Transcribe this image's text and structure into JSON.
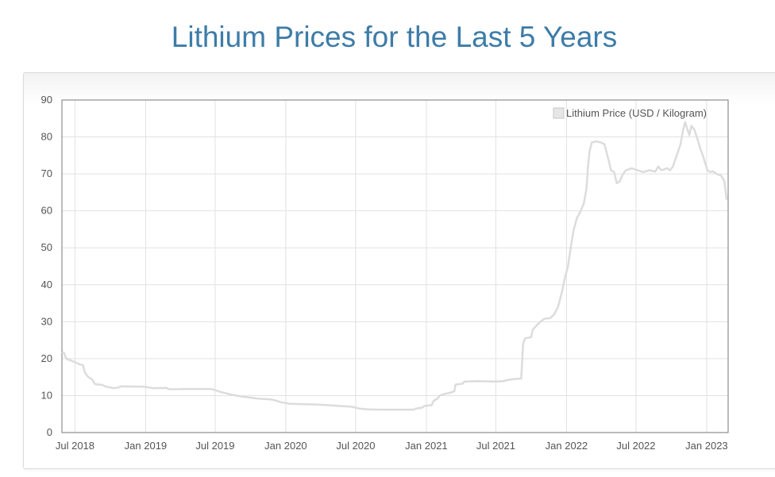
{
  "title": "Lithium Prices for the Last 5 Years",
  "chart_data": {
    "type": "line",
    "title": "Lithium Prices for the Last 5 Years",
    "xlabel": "",
    "ylabel": "",
    "ylim": [
      0,
      90
    ],
    "yticks": [
      0,
      10,
      20,
      30,
      40,
      50,
      60,
      70,
      80,
      90
    ],
    "xlim": [
      "2018-05-28",
      "2023-02-26"
    ],
    "xticks": [
      {
        "date": "2018-07-01",
        "label": "Jul 2018"
      },
      {
        "date": "2019-01-01",
        "label": "Jan 2019"
      },
      {
        "date": "2019-07-01",
        "label": "Jul 2019"
      },
      {
        "date": "2020-01-01",
        "label": "Jan 2020"
      },
      {
        "date": "2020-07-01",
        "label": "Jul 2020"
      },
      {
        "date": "2021-01-01",
        "label": "Jan 2021"
      },
      {
        "date": "2021-07-01",
        "label": "Jul 2021"
      },
      {
        "date": "2022-01-01",
        "label": "Jan 2022"
      },
      {
        "date": "2022-07-01",
        "label": "Jul 2022"
      },
      {
        "date": "2023-01-01",
        "label": "Jan 2023"
      }
    ],
    "grid": true,
    "legend_position": "top-right",
    "series": [
      {
        "name": "Lithium Price (USD / Kilogram)",
        "color": "#dcdcdc",
        "points": [
          [
            "2018-05-28",
            21.8
          ],
          [
            "2018-06-03",
            21.5
          ],
          [
            "2018-06-06",
            20.5
          ],
          [
            "2018-06-10",
            19.9
          ],
          [
            "2018-06-20",
            19.5
          ],
          [
            "2018-07-02",
            19.0
          ],
          [
            "2018-07-10",
            18.6
          ],
          [
            "2018-07-22",
            18.2
          ],
          [
            "2018-07-27",
            16.2
          ],
          [
            "2018-08-03",
            15.2
          ],
          [
            "2018-08-15",
            14.3
          ],
          [
            "2018-08-22",
            13.1
          ],
          [
            "2018-09-10",
            12.9
          ],
          [
            "2018-09-17",
            12.5
          ],
          [
            "2018-10-01",
            12.2
          ],
          [
            "2018-10-10",
            12.0
          ],
          [
            "2018-10-22",
            12.2
          ],
          [
            "2018-10-29",
            12.5
          ],
          [
            "2018-12-28",
            12.4
          ],
          [
            "2019-01-10",
            12.2
          ],
          [
            "2019-01-20",
            12.0
          ],
          [
            "2019-02-25",
            12.1
          ],
          [
            "2019-03-01",
            11.8
          ],
          [
            "2019-03-08",
            11.7
          ],
          [
            "2019-04-10",
            11.8
          ],
          [
            "2019-06-20",
            11.8
          ],
          [
            "2019-07-01",
            11.5
          ],
          [
            "2019-07-15",
            11.0
          ],
          [
            "2019-08-15",
            10.2
          ],
          [
            "2019-09-05",
            9.8
          ],
          [
            "2019-10-05",
            9.4
          ],
          [
            "2019-10-20",
            9.2
          ],
          [
            "2019-11-20",
            9.0
          ],
          [
            "2019-12-01",
            8.8
          ],
          [
            "2019-12-20",
            8.2
          ],
          [
            "2020-01-10",
            7.8
          ],
          [
            "2020-02-15",
            7.7
          ],
          [
            "2020-03-20",
            7.6
          ],
          [
            "2020-04-20",
            7.4
          ],
          [
            "2020-05-20",
            7.2
          ],
          [
            "2020-06-20",
            7.0
          ],
          [
            "2020-07-10",
            6.5
          ],
          [
            "2020-08-01",
            6.3
          ],
          [
            "2020-09-01",
            6.2
          ],
          [
            "2020-10-20",
            6.2
          ],
          [
            "2020-11-30",
            6.2
          ],
          [
            "2020-12-05",
            6.5
          ],
          [
            "2020-12-20",
            6.7
          ],
          [
            "2020-12-27",
            7.2
          ],
          [
            "2021-01-15",
            7.4
          ],
          [
            "2021-01-20",
            8.6
          ],
          [
            "2021-01-30",
            9.2
          ],
          [
            "2021-02-05",
            10.0
          ],
          [
            "2021-02-20",
            10.5
          ],
          [
            "2021-03-05",
            10.8
          ],
          [
            "2021-03-15",
            11.2
          ],
          [
            "2021-03-18",
            13.0
          ],
          [
            "2021-04-05",
            13.2
          ],
          [
            "2021-04-10",
            13.8
          ],
          [
            "2021-05-15",
            13.9
          ],
          [
            "2021-06-30",
            13.8
          ],
          [
            "2021-07-20",
            13.9
          ],
          [
            "2021-08-05",
            14.3
          ],
          [
            "2021-08-20",
            14.5
          ],
          [
            "2021-09-05",
            14.6
          ],
          [
            "2021-09-10",
            24.0
          ],
          [
            "2021-09-15",
            25.5
          ],
          [
            "2021-10-01",
            25.8
          ],
          [
            "2021-10-05",
            27.8
          ],
          [
            "2021-10-15",
            29.0
          ],
          [
            "2021-10-25",
            30.0
          ],
          [
            "2021-11-05",
            30.8
          ],
          [
            "2021-11-20",
            31.0
          ],
          [
            "2021-11-30",
            32.0
          ],
          [
            "2021-12-10",
            34.0
          ],
          [
            "2021-12-20",
            38.0
          ],
          [
            "2021-12-28",
            42.0
          ],
          [
            "2022-01-05",
            45.0
          ],
          [
            "2022-01-12",
            50.0
          ],
          [
            "2022-01-20",
            55.0
          ],
          [
            "2022-01-28",
            58.0
          ],
          [
            "2022-02-05",
            59.5
          ],
          [
            "2022-02-15",
            62.0
          ],
          [
            "2022-02-22",
            66.0
          ],
          [
            "2022-02-26",
            72.0
          ],
          [
            "2022-03-02",
            76.0
          ],
          [
            "2022-03-08",
            78.5
          ],
          [
            "2022-03-20",
            78.8
          ],
          [
            "2022-04-01",
            78.5
          ],
          [
            "2022-04-10",
            78.0
          ],
          [
            "2022-04-20",
            74.0
          ],
          [
            "2022-04-27",
            71.0
          ],
          [
            "2022-05-05",
            70.5
          ],
          [
            "2022-05-12",
            67.5
          ],
          [
            "2022-05-20",
            68.0
          ],
          [
            "2022-05-28",
            70.0
          ],
          [
            "2022-06-05",
            71.0
          ],
          [
            "2022-06-20",
            71.5
          ],
          [
            "2022-07-05",
            71.0
          ],
          [
            "2022-07-20",
            70.5
          ],
          [
            "2022-08-05",
            71.0
          ],
          [
            "2022-08-20",
            70.6
          ],
          [
            "2022-08-28",
            72.0
          ],
          [
            "2022-09-05",
            71.0
          ],
          [
            "2022-09-20",
            71.5
          ],
          [
            "2022-09-28",
            71.0
          ],
          [
            "2022-10-05",
            72.0
          ],
          [
            "2022-10-15",
            75.0
          ],
          [
            "2022-10-25",
            78.0
          ],
          [
            "2022-11-01",
            82.0
          ],
          [
            "2022-11-06",
            84.0
          ],
          [
            "2022-11-12",
            82.0
          ],
          [
            "2022-11-17",
            80.5
          ],
          [
            "2022-11-22",
            83.0
          ],
          [
            "2022-11-30",
            82.0
          ],
          [
            "2022-12-08",
            79.5
          ],
          [
            "2022-12-15",
            77.0
          ],
          [
            "2022-12-22",
            75.0
          ],
          [
            "2022-12-28",
            73.0
          ],
          [
            "2023-01-03",
            71.0
          ],
          [
            "2023-01-10",
            70.5
          ],
          [
            "2023-01-17",
            70.7
          ],
          [
            "2023-01-27",
            70.0
          ],
          [
            "2023-02-08",
            69.5
          ],
          [
            "2023-02-16",
            68.0
          ],
          [
            "2023-02-22",
            63.0
          ]
        ]
      }
    ]
  }
}
